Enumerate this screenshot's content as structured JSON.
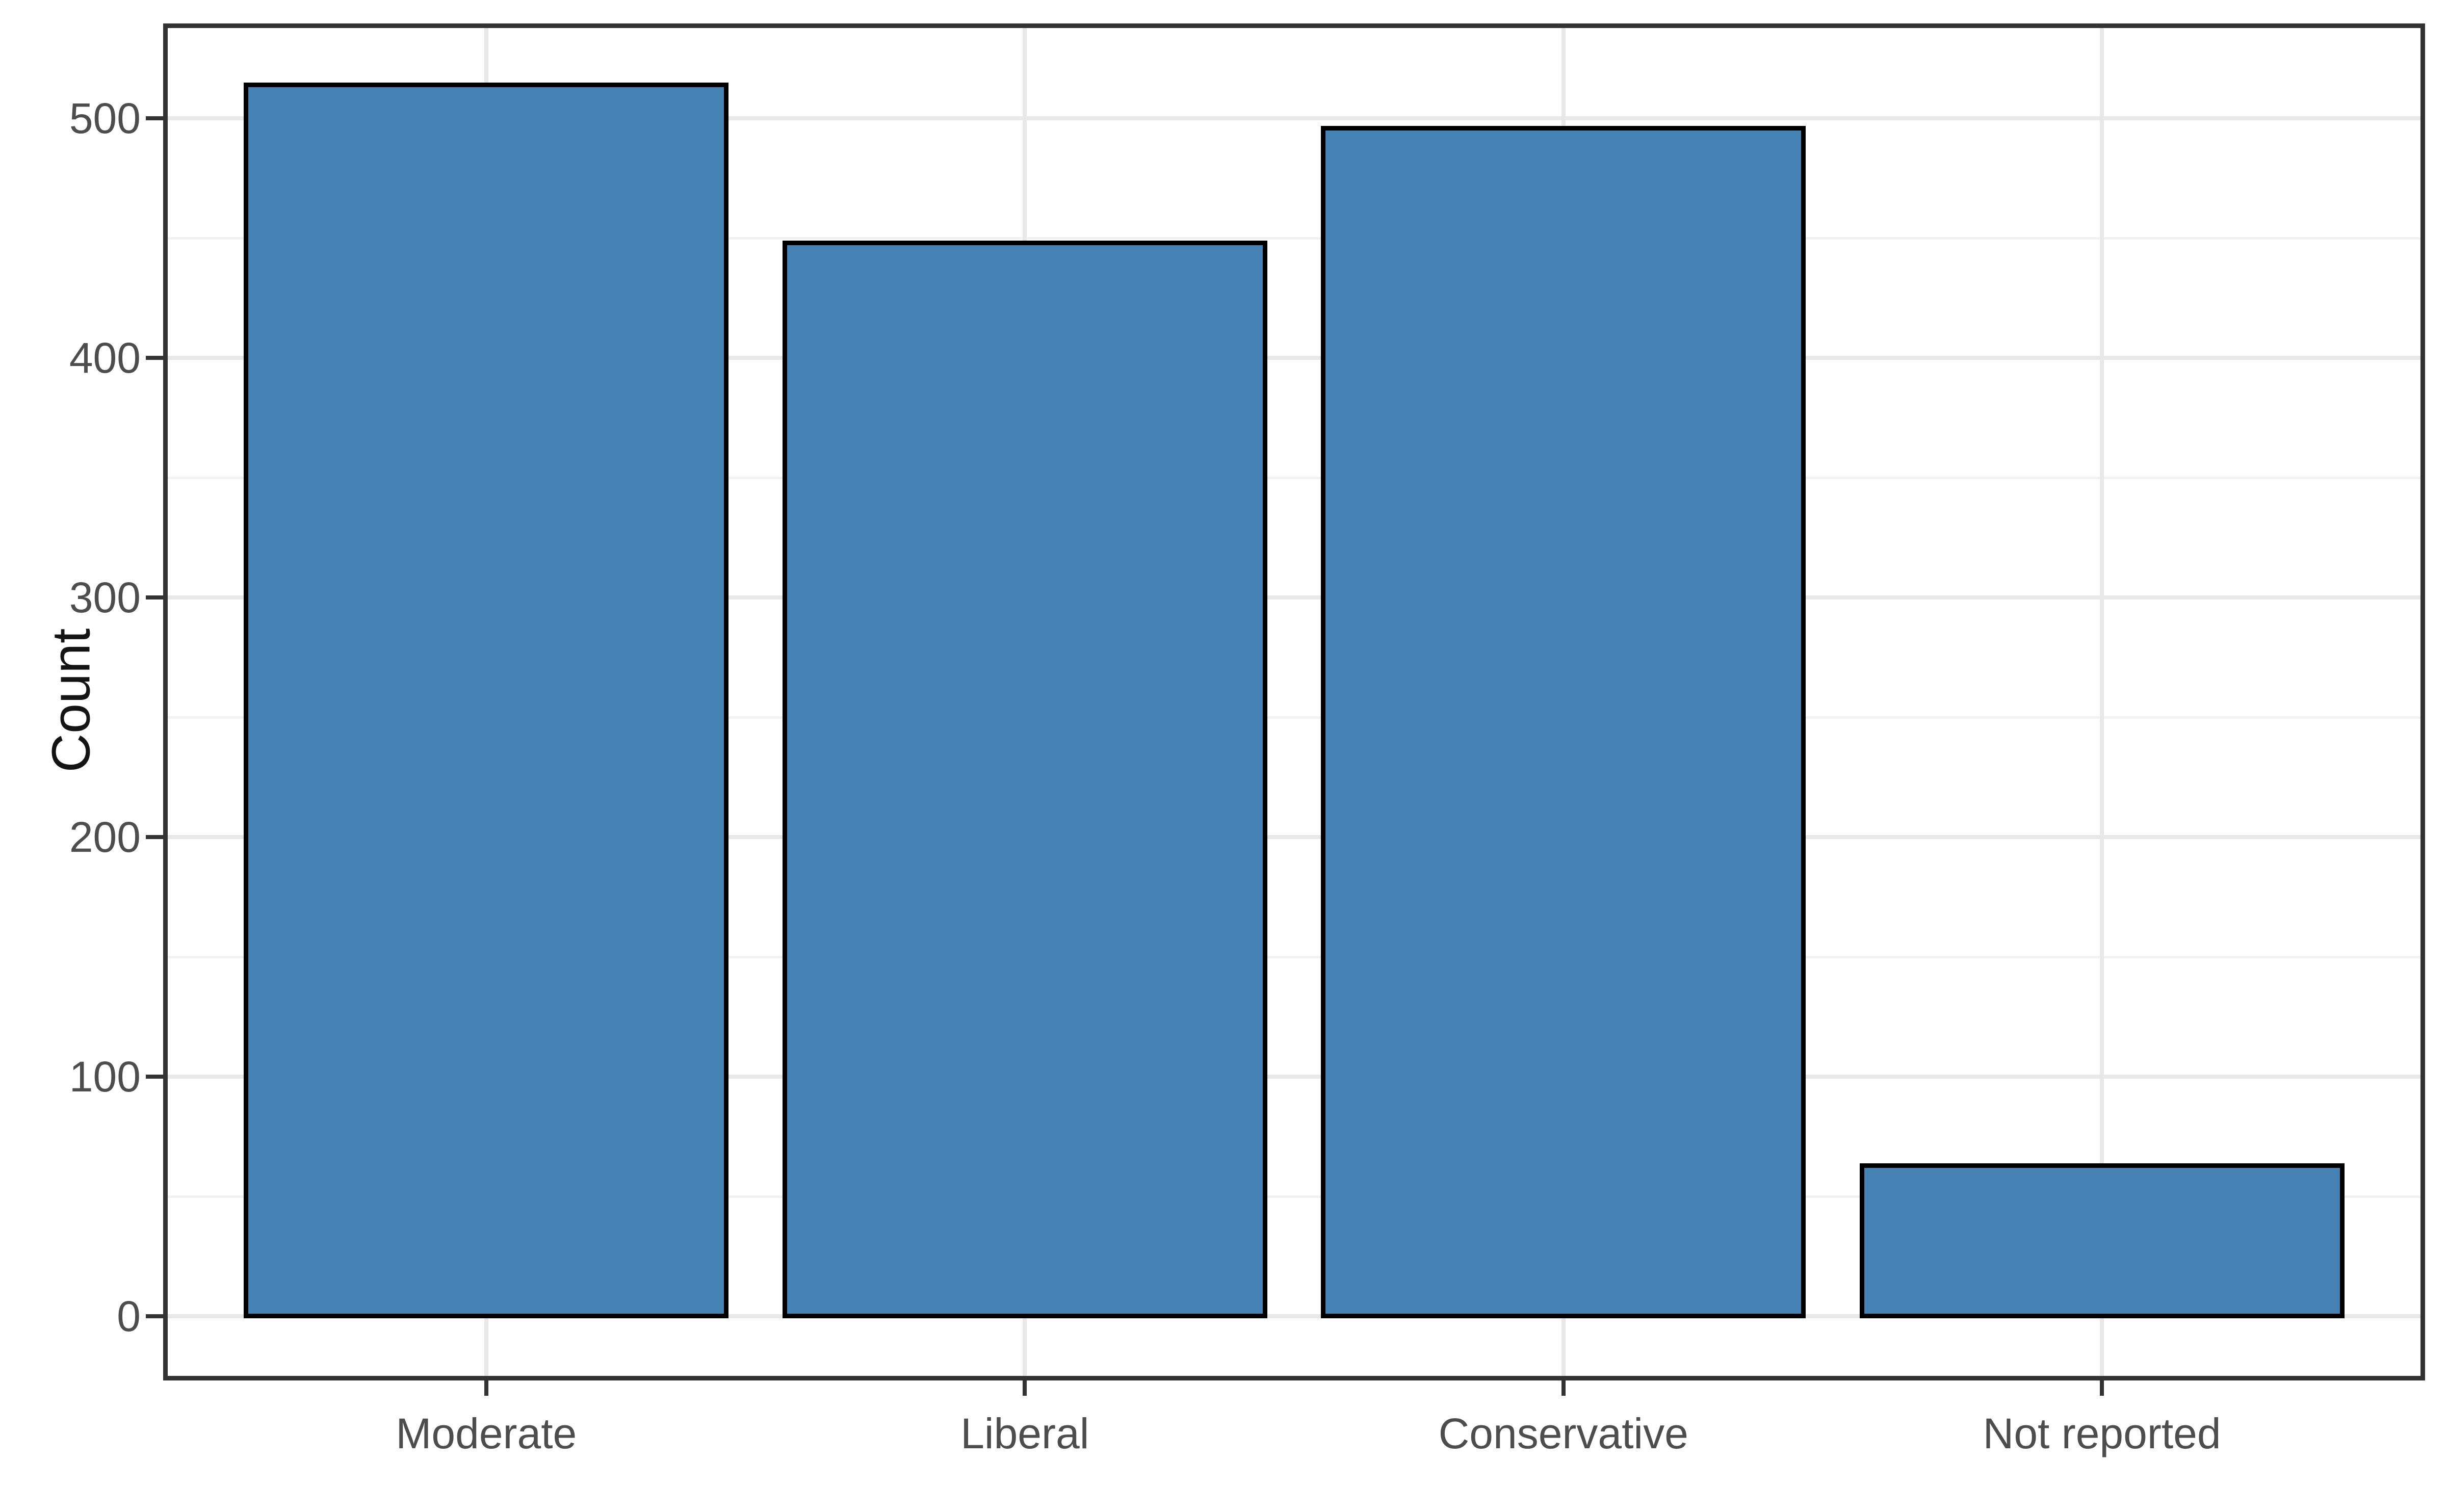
{
  "chart_data": {
    "type": "bar",
    "title": "",
    "categories": [
      "Moderate",
      "Liberal",
      "Conservative",
      "Not reported"
    ],
    "values": [
      514,
      448,
      496,
      63
    ],
    "xlabel": "",
    "ylabel": "Count",
    "ylim": [
      -25,
      540
    ],
    "y_major_ticks": [
      0,
      100,
      200,
      300,
      400,
      500
    ],
    "y_minor_ticks": [
      50,
      150,
      250,
      350,
      450
    ],
    "grid": "on",
    "legend": "none",
    "bar_fill_color": "#4682B4",
    "bar_stroke_color": "#000000",
    "panel_border_color": "#333333",
    "major_gridline_color": "#e8e8e8",
    "minor_gridline_color": "#f2f2f2",
    "tick_label_color": "#4d4d4d",
    "axis_title_color": "#141414",
    "background_color": "#ffffff"
  }
}
